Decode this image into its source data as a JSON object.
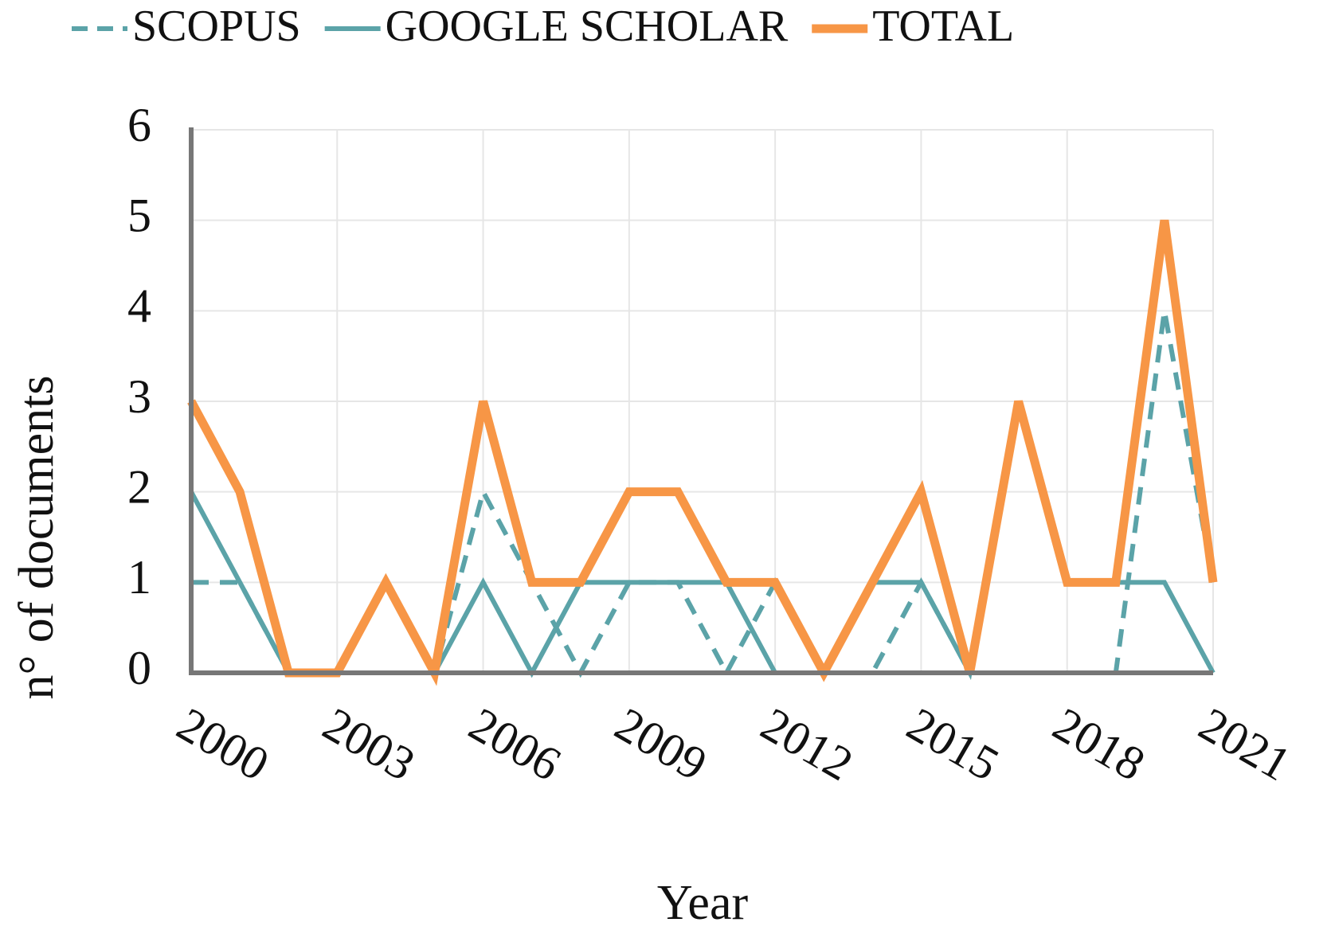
{
  "chart_data": {
    "type": "line",
    "x_label": "Year",
    "y_label": "n° of documents",
    "x": [
      2000,
      2001,
      2002,
      2003,
      2004,
      2005,
      2006,
      2007,
      2008,
      2009,
      2010,
      2011,
      2012,
      2013,
      2014,
      2015,
      2016,
      2017,
      2018,
      2019,
      2020,
      2021
    ],
    "series": [
      {
        "name": "SCOPUS",
        "color": "#5ba3a8",
        "dashed": true,
        "values": [
          1,
          1,
          0,
          0,
          0,
          0,
          2,
          1,
          0,
          1,
          1,
          0,
          1,
          0,
          0,
          1,
          0,
          0,
          0,
          0,
          4,
          1
        ]
      },
      {
        "name": "GOOGLE SCHOLAR",
        "color": "#5ba3a8",
        "dashed": false,
        "values": [
          2,
          1,
          0,
          0,
          1,
          0,
          1,
          0,
          1,
          1,
          1,
          1,
          0,
          0,
          1,
          1,
          0,
          3,
          1,
          1,
          1,
          0
        ]
      },
      {
        "name": "TOTAL",
        "color": "#f79646",
        "dashed": false,
        "values": [
          3,
          2,
          0,
          0,
          1,
          0,
          3,
          1,
          1,
          2,
          2,
          1,
          1,
          0,
          1,
          2,
          0,
          3,
          1,
          1,
          5,
          1
        ]
      }
    ],
    "xlim": [
      2000,
      2021
    ],
    "xticks": [
      2000,
      2003,
      2006,
      2009,
      2012,
      2015,
      2018,
      2021
    ],
    "ylim": [
      0,
      6
    ],
    "yticks": [
      0,
      1,
      2,
      3,
      4,
      5,
      6
    ],
    "grid": true,
    "legend": "top"
  }
}
